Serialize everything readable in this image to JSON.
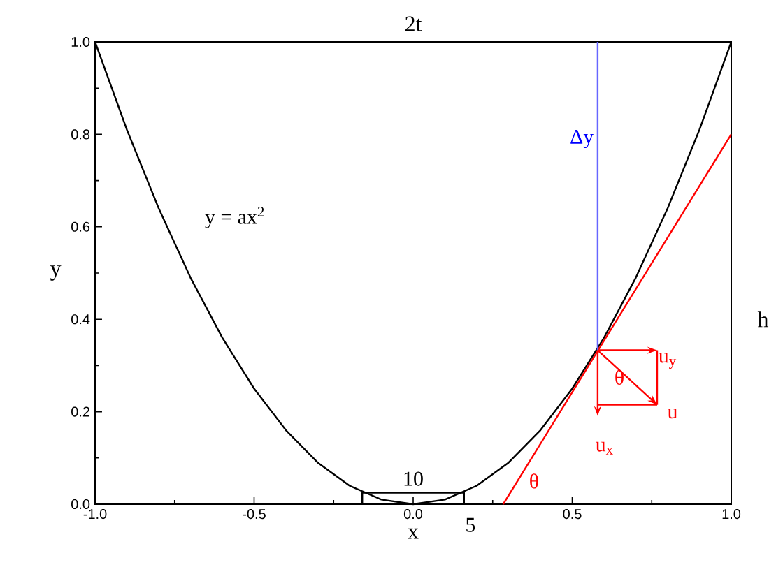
{
  "chart_data": {
    "type": "line",
    "title": "2t",
    "xlabel": "x",
    "ylabel": "y",
    "y2label": "h",
    "xlim": [
      -1,
      1
    ],
    "ylim": [
      0,
      1
    ],
    "xticks": [
      {
        "value": -1,
        "label": "-1.0"
      },
      {
        "value": -0.5,
        "label": "-0.5"
      },
      {
        "value": 0,
        "label": "0.0"
      },
      {
        "value": 0.5,
        "label": "0.5"
      },
      {
        "value": 1,
        "label": "1.0"
      }
    ],
    "yticks": [
      {
        "value": 0,
        "label": "0.0"
      },
      {
        "value": 0.2,
        "label": "0.2"
      },
      {
        "value": 0.4,
        "label": "0.4"
      },
      {
        "value": 0.6,
        "label": "0.6"
      },
      {
        "value": 0.8,
        "label": "0.8"
      },
      {
        "value": 1,
        "label": "1.0"
      }
    ],
    "grid": false,
    "series": [
      {
        "color": "#000000",
        "x": [
          -1,
          -0.9,
          -0.8,
          -0.7,
          -0.6,
          -0.5,
          -0.4,
          -0.3,
          -0.2,
          -0.1,
          0,
          0.1,
          0.2,
          0.3,
          0.4,
          0.5,
          0.6,
          0.7,
          0.8,
          0.9,
          1
        ],
        "values": [
          1,
          0.81,
          0.64,
          0.49,
          0.36,
          0.25,
          0.16,
          0.09,
          0.04,
          0.01,
          0,
          0.01,
          0.04,
          0.09,
          0.16,
          0.25,
          0.36,
          0.49,
          0.64,
          0.81,
          1
        ]
      },
      {
        "color": "#000000",
        "x": [
          -1,
          1
        ],
        "values": [
          1,
          1
        ]
      },
      {
        "color": "#000000",
        "x": [
          -0.16,
          -0.16,
          0.16,
          0.16
        ],
        "values": [
          0,
          0.025,
          0.025,
          0
        ]
      },
      {
        "color": "#ff0000",
        "x": [
          0.283,
          1
        ],
        "values": [
          0,
          0.8
        ]
      },
      {
        "color": "#6666ff",
        "x": [
          0.58,
          0.58
        ],
        "values": [
          0.333,
          1
        ]
      },
      {
        "color": "#ff0000",
        "x": [
          0.58,
          0.767
        ],
        "values": [
          0.215,
          0.215
        ]
      },
      {
        "color": "#ff0000",
        "x": [
          0.767,
          0.767
        ],
        "values": [
          0.333,
          0.215
        ]
      }
    ],
    "annotations": [
      "y = ax$^{2}$",
      "Δy",
      "10",
      "5",
      "θ",
      {
        "text": "θ",
        "x": 0.6,
        "y": 0.353
      },
      {
        "text": "u$_{x}$",
        "x": 0.58,
        "y": 0.215
      },
      "u$_{y}$",
      {
        "text": "u",
        "x": 0.767,
        "y": 0.22
      }
    ]
  }
}
